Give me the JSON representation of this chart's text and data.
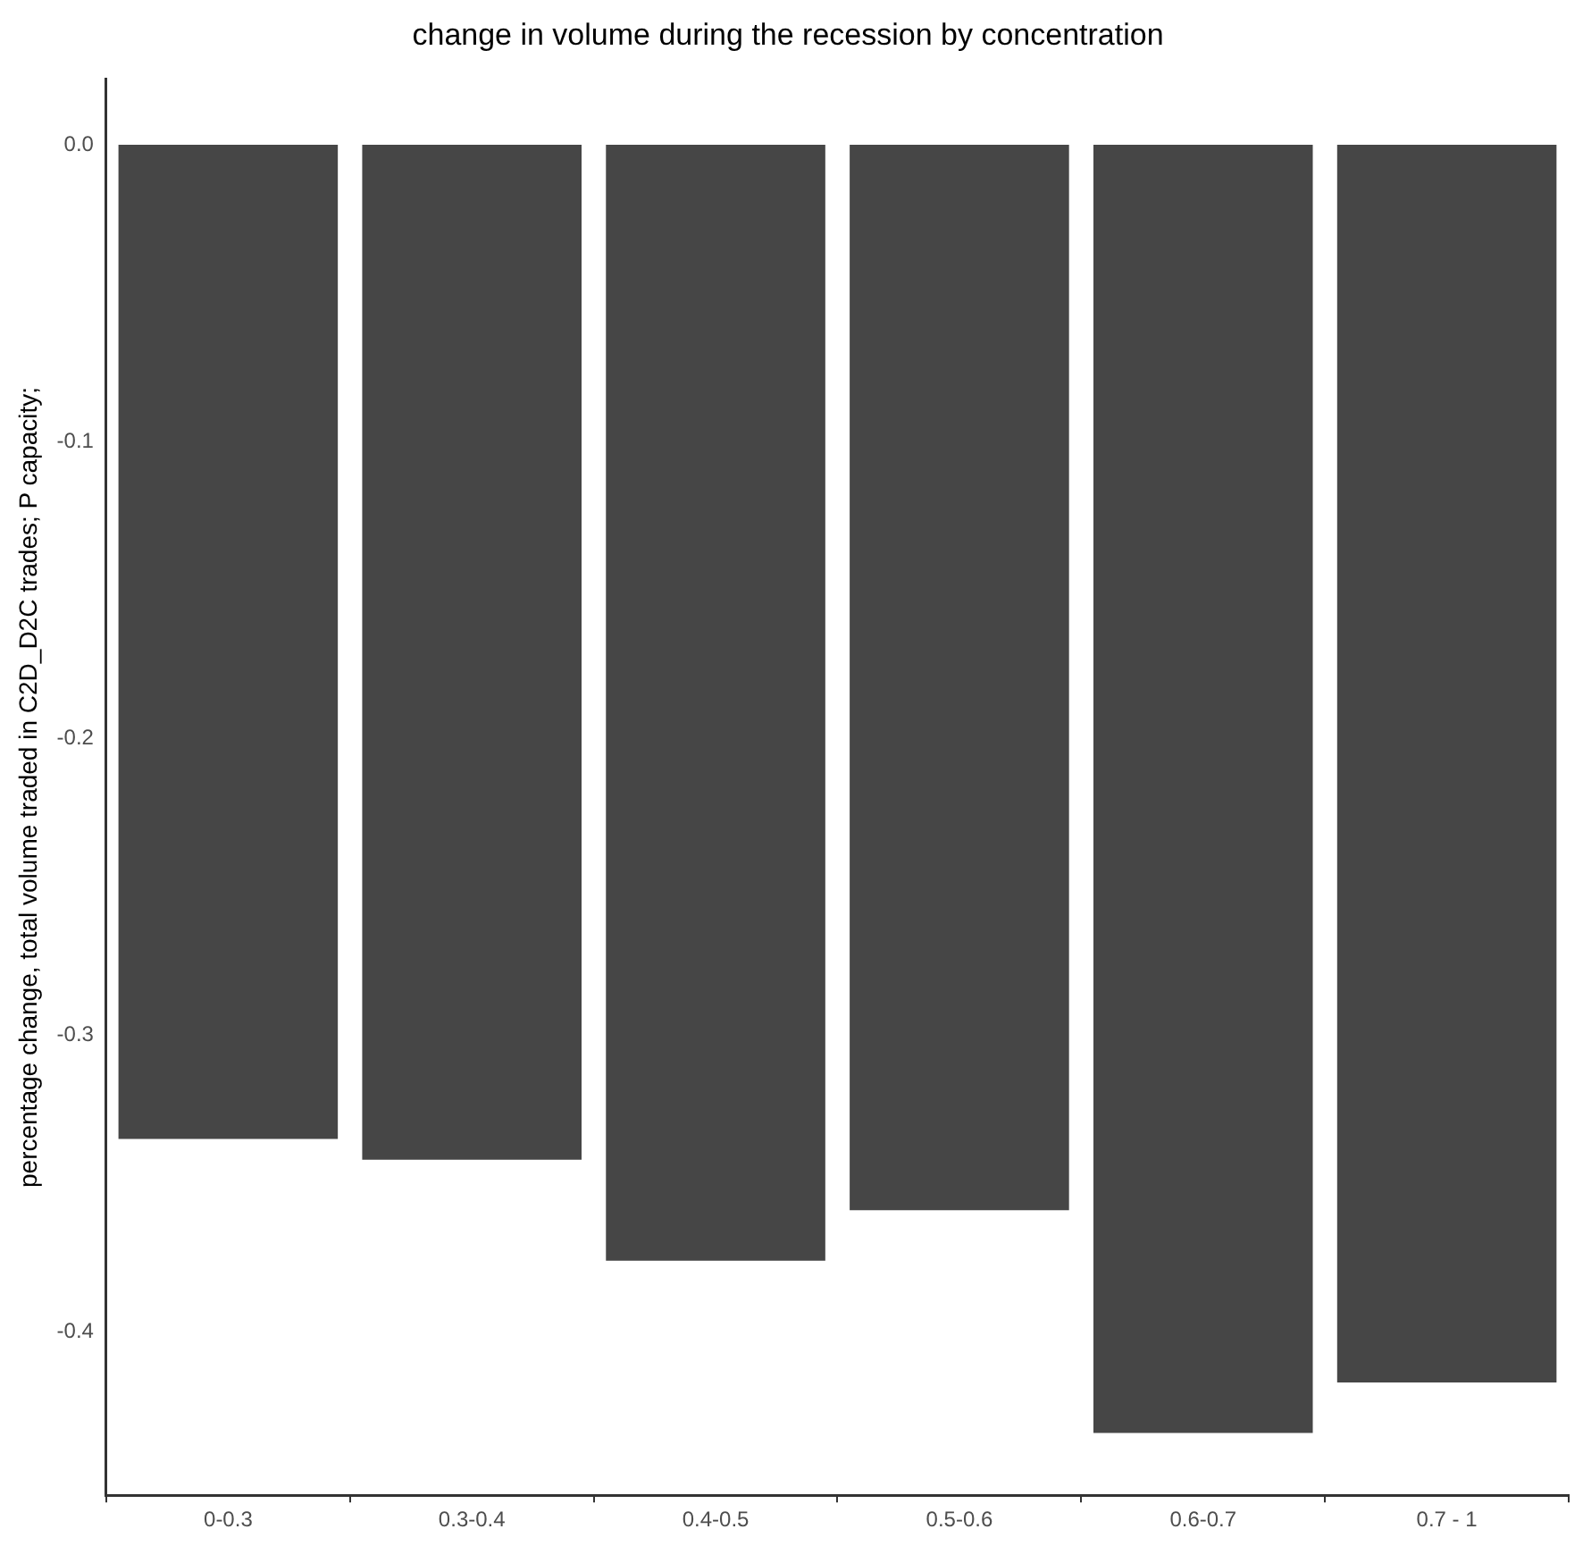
{
  "chart_data": {
    "type": "bar",
    "title": "change in volume during the recession by concentration",
    "ylabel": "percentage change, total volume traded in C2D_D2C trades; P capacity;",
    "categories": [
      "0-0.3",
      "0.3-0.4",
      "0.4-0.5",
      "0.5-0.6",
      "0.6-0.7",
      "0.7 - 1"
    ],
    "values": [
      -0.335,
      -0.342,
      -0.376,
      -0.359,
      -0.434,
      -0.417
    ],
    "color": "#464646",
    "ylim": [
      -0.455,
      0.022
    ],
    "yticks": [
      {
        "value": 0,
        "label": "0.0"
      },
      -0.1,
      -0.2,
      -0.3,
      -0.4
    ],
    "grid": false,
    "legend": false
  }
}
